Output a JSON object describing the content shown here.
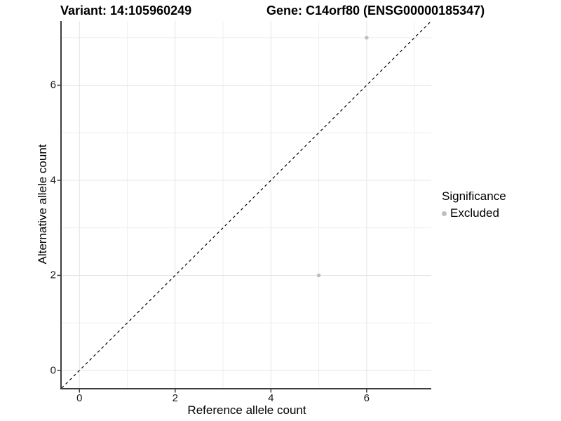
{
  "chart_data": {
    "type": "scatter",
    "titles": {
      "variant": "Variant: 14:105960249",
      "gene": "Gene: C14orf80 (ENSG00000185347)"
    },
    "xlabel": "Reference allele count",
    "ylabel": "Alternative allele count",
    "xlim": [
      -0.37,
      7.35
    ],
    "ylim": [
      -0.37,
      7.35
    ],
    "x_ticks": [
      0,
      2,
      4,
      6
    ],
    "y_ticks": [
      0,
      2,
      4,
      6
    ],
    "x_minor_ticks": [
      1,
      3,
      5,
      7
    ],
    "y_minor_ticks": [
      1,
      3,
      5,
      7
    ],
    "grid": true,
    "reference_line": {
      "kind": "identity",
      "slope": 1,
      "intercept": 0,
      "style": "dashed"
    },
    "series": [
      {
        "name": "Excluded",
        "points": [
          [
            5,
            2
          ],
          [
            6,
            7
          ]
        ]
      }
    ],
    "legend": {
      "title": "Significance",
      "position": "right",
      "entries": [
        {
          "label": "Excluded",
          "color": "#bebebe"
        }
      ]
    }
  },
  "colors": {
    "point": "#bebebe",
    "grid_major": "#e4e4e4",
    "grid_minor": "#efefef",
    "axis_line": "#3d3d3d",
    "reference_line": "#000000",
    "text": "#000000",
    "background": "#ffffff"
  }
}
